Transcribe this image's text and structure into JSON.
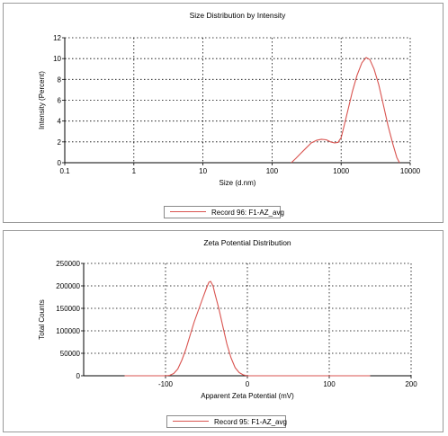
{
  "chart_data": [
    {
      "type": "line",
      "title": "Size Distribution by Intensity",
      "xlabel": "Size (d.nm)",
      "ylabel": "Intensity (Percent)",
      "xscale": "log",
      "xlim": [
        0.1,
        10000
      ],
      "ylim": [
        0,
        12
      ],
      "xticks": [
        "0.1",
        "1",
        "10",
        "100",
        "1000",
        "10000"
      ],
      "yticks": [
        "0",
        "2",
        "4",
        "6",
        "8",
        "10",
        "12"
      ],
      "grid": true,
      "legend_position": "bottom",
      "series": [
        {
          "name": "Record 96: F1-AZ_avg",
          "color": "#d9534f",
          "x": [
            190,
            220,
            260,
            310,
            370,
            440,
            520,
            610,
            700,
            800,
            900,
            1000,
            1100,
            1250,
            1450,
            1700,
            2000,
            2300,
            2600,
            3000,
            3500,
            4100,
            4800,
            5600,
            6400,
            7000
          ],
          "y": [
            0,
            0.4,
            0.9,
            1.4,
            1.9,
            2.15,
            2.25,
            2.2,
            2.0,
            1.9,
            1.95,
            2.4,
            3.5,
            5.0,
            6.8,
            8.4,
            9.6,
            10.1,
            9.9,
            9.0,
            7.5,
            5.5,
            3.5,
            1.8,
            0.5,
            0
          ]
        }
      ]
    },
    {
      "type": "line",
      "title": "Zeta Potential Distribution",
      "xlabel": "Apparent Zeta Potential (mV)",
      "ylabel": "Total Counts",
      "xlim": [
        -200,
        200
      ],
      "ylim": [
        0,
        250000
      ],
      "xticks": [
        "-100",
        "0",
        "100",
        "200"
      ],
      "yticks": [
        "0",
        "50000",
        "100000",
        "150000",
        "200000",
        "250000"
      ],
      "grid": true,
      "legend_position": "bottom",
      "series": [
        {
          "name": "Record 95: F1-AZ_avg",
          "color": "#d9534f",
          "x": [
            -150,
            -100,
            -95,
            -90,
            -85,
            -80,
            -75,
            -70,
            -65,
            -60,
            -55,
            -50,
            -47,
            -45,
            -42,
            -40,
            -35,
            -30,
            -25,
            -20,
            -15,
            -10,
            -5,
            0,
            50,
            100,
            150
          ],
          "y": [
            0,
            0,
            1000,
            5000,
            15000,
            35000,
            60000,
            90000,
            120000,
            145000,
            170000,
            195000,
            208000,
            210000,
            200000,
            185000,
            150000,
            110000,
            70000,
            40000,
            18000,
            7000,
            2000,
            0,
            0,
            0,
            0
          ]
        }
      ]
    }
  ]
}
